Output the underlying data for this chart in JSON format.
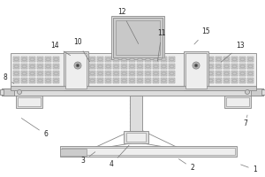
{
  "lc": "#888888",
  "lw": 0.6,
  "fc_light": "#eeeeee",
  "fc_mid": "#dddddd",
  "fc_dark": "#cccccc",
  "fc_hex": "#d8d8d8",
  "fc_hex_inner": "#c5c5c5",
  "label_fs": 5.5,
  "label_color": "#222222",
  "arrow_color": "#777777",
  "labels": [
    [
      "1",
      289,
      192,
      270,
      185
    ],
    [
      "2",
      218,
      190,
      200,
      178
    ],
    [
      "3",
      94,
      182,
      110,
      170
    ],
    [
      "4",
      126,
      186,
      148,
      162
    ],
    [
      "6",
      52,
      152,
      22,
      132
    ],
    [
      "7",
      278,
      140,
      280,
      130
    ],
    [
      "8",
      6,
      88,
      18,
      96
    ],
    [
      "10",
      88,
      48,
      103,
      72
    ],
    [
      "11",
      183,
      38,
      178,
      72
    ],
    [
      "12",
      138,
      14,
      158,
      52
    ],
    [
      "13",
      272,
      52,
      248,
      72
    ],
    [
      "14",
      62,
      52,
      82,
      64
    ],
    [
      "15",
      233,
      36,
      218,
      52
    ]
  ]
}
